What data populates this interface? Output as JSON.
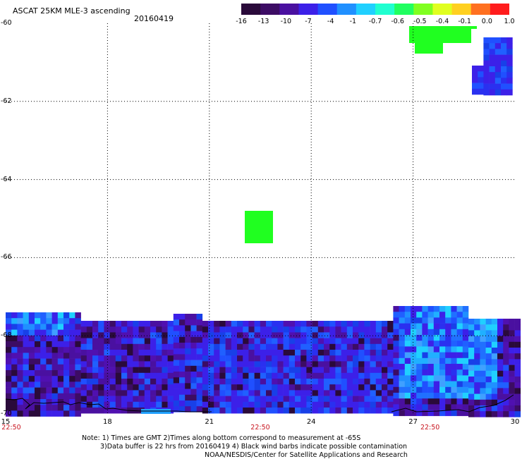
{
  "header": {
    "title": "ASCAT 25KM MLE-3 ascending",
    "date": "20160419"
  },
  "colorbar": {
    "colors": [
      "#2a0a3a",
      "#3c0c64",
      "#4a10a0",
      "#3c20e8",
      "#2050ff",
      "#2090ff",
      "#20d0ff",
      "#20ffd0",
      "#20ff60",
      "#80ff20",
      "#e0ff20",
      "#ffd020",
      "#ff7020",
      "#ff1c1c"
    ],
    "labels": [
      "-16",
      "-13",
      "-10",
      "-7",
      "-4",
      "-1",
      "-0.7",
      "-0.6",
      "-0.5",
      "-0.4",
      "-0.1",
      "0.0",
      "1.0"
    ]
  },
  "map": {
    "lon_range": [
      15,
      30
    ],
    "lat_range": [
      -70,
      -60
    ],
    "y_ticks": [
      "-60",
      "-62",
      "-64",
      "-66",
      "-68",
      "-70"
    ],
    "x_ticks": [
      "15",
      "18",
      "21",
      "24",
      "27",
      "30"
    ],
    "time_labels": [
      {
        "lon": 15,
        "text": "22:50"
      },
      {
        "lon": 22.5,
        "text": "22:50"
      },
      {
        "lon": 27.5,
        "text": "22:50"
      }
    ]
  },
  "notes": [
    "Note: 1) Times are GMT 2)Times along bottom correspond to measurement at -65S",
    "3)Data buffer is 22 hrs from 20160419 4) Black wind barbs indicate possible contamination",
    "NOAA/NESDIS/Center for Satellite Applications and Research"
  ]
}
